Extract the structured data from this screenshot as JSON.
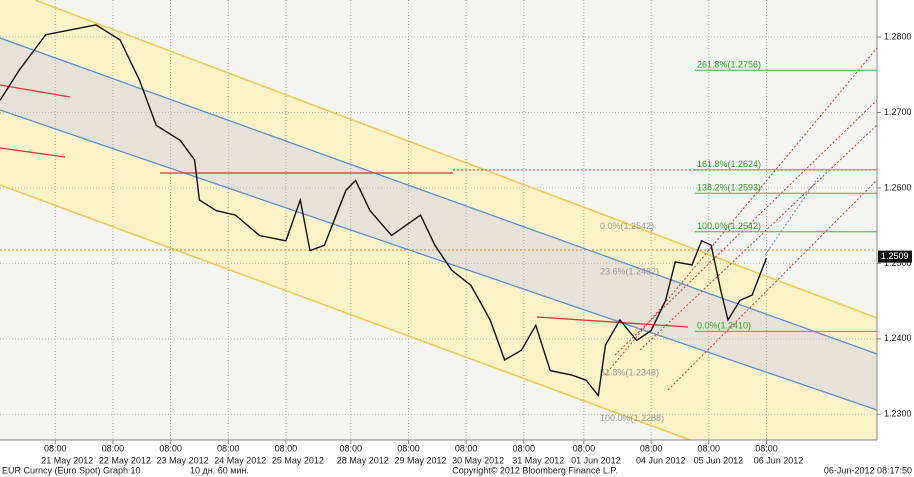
{
  "chart_data": {
    "type": "line",
    "series": [
      {
        "name": "EUR Curncy (Euro Spot) Graph 10",
        "color": "#111111",
        "x": [
          0,
          8,
          19,
          40,
          50,
          58,
          65,
          75,
          81,
          83,
          90,
          98,
          108,
          119,
          125,
          129,
          135,
          144,
          148,
          154,
          163,
          175,
          181,
          188,
          196,
          204,
          210,
          217,
          223,
          229,
          238,
          244,
          249,
          252,
          258,
          265,
          271,
          277,
          281,
          288,
          292,
          296,
          300,
          303,
          308,
          313,
          317,
          319
        ],
        "values": [
          1.2716,
          1.2756,
          1.2803,
          1.2816,
          1.2796,
          1.2743,
          1.2683,
          1.2663,
          1.2637,
          1.2584,
          1.257,
          1.2564,
          1.2537,
          1.253,
          1.2584,
          1.2517,
          1.2524,
          1.2597,
          1.261,
          1.257,
          1.2537,
          1.2564,
          1.2524,
          1.2491,
          1.2471,
          1.2425,
          1.2372,
          1.2385,
          1.2418,
          1.2358,
          1.2352,
          1.2345,
          1.2325,
          1.2392,
          1.2425,
          1.2398,
          1.2411,
          1.2451,
          1.2502,
          1.2498,
          1.253,
          1.2524,
          1.2464,
          1.2425,
          1.2451,
          1.2458,
          1.2491,
          1.2507
        ]
      }
    ],
    "xlim": [
      0,
      365
    ],
    "xticks": [
      {
        "value": 23,
        "label": "08:00"
      },
      {
        "value": 47,
        "label": "08:00"
      },
      {
        "value": 71,
        "label": "08:00"
      },
      {
        "value": 95,
        "label": "08:00"
      },
      {
        "value": 119,
        "label": "08:00"
      },
      {
        "value": 146,
        "label": "08:00"
      },
      {
        "value": 170,
        "label": "08:00"
      },
      {
        "value": 194,
        "label": "08:00"
      },
      {
        "value": 218,
        "label": "08:00"
      },
      {
        "value": 243,
        "label": "08:00"
      },
      {
        "value": 271,
        "label": "08:00"
      },
      {
        "value": 295,
        "label": "08:00"
      },
      {
        "value": 319,
        "label": "08:00"
      }
    ],
    "date_ticks": [
      {
        "value": 28,
        "label": "21 May 2012"
      },
      {
        "value": 52,
        "label": "22 May 2012"
      },
      {
        "value": 76,
        "label": "23 May 2012"
      },
      {
        "value": 100,
        "label": "24 May 2012"
      },
      {
        "value": 124,
        "label": "25 May 2012"
      },
      {
        "value": 151,
        "label": "28 May 2012"
      },
      {
        "value": 175,
        "label": "29 May 2012"
      },
      {
        "value": 199,
        "label": "30 May 2012"
      },
      {
        "value": 224,
        "label": "31 May 2012"
      },
      {
        "value": 248,
        "label": "01 Jun 2012"
      },
      {
        "value": 275,
        "label": "04 Jun 2012"
      },
      {
        "value": 299,
        "label": "05 Jun 2012"
      },
      {
        "value": 324,
        "label": "06 Jun 2012"
      }
    ],
    "ylim": [
      1.2266,
      1.2849
    ],
    "yticks": [
      {
        "value": 1.28,
        "label": "1.2800"
      },
      {
        "value": 1.27,
        "label": "1.2700"
      },
      {
        "value": 1.26,
        "label": "1.2600"
      },
      {
        "value": 1.25,
        "label": "1.2500"
      },
      {
        "value": 1.24,
        "label": "1.2400"
      },
      {
        "value": 1.23,
        "label": "1.2300"
      }
    ],
    "last_price": 1.2509,
    "fib_right": [
      {
        "text": "261.8%(1.2756)",
        "level": 1.2756
      },
      {
        "text": "161.8%(1.2624)",
        "level": 1.2624
      },
      {
        "text": "138.2%(1.2593)",
        "level": 1.2593
      },
      {
        "text": "100.0%(1.2542)",
        "level": 1.2542
      },
      {
        "text": "0.0%(1.2410)",
        "level": 1.241
      }
    ],
    "fib_left": [
      {
        "text": "0.0%(1.2542)",
        "level": 1.2542
      },
      {
        "text": "23.6%(1.2482)",
        "level": 1.2482
      },
      {
        "text": "61.8%(1.2348)",
        "level": 1.2348
      },
      {
        "text": "100.0%(1.2288)",
        "level": 1.2288
      }
    ],
    "footer": {
      "left": "EUR Curncy (Euro Spot) Graph 10",
      "period": "10 дн. 60 мин.",
      "copyright": "Copyright© 2012 Bloomberg Finance L.P.",
      "timestamp": "06-Jun-2012 08:17:50"
    }
  }
}
